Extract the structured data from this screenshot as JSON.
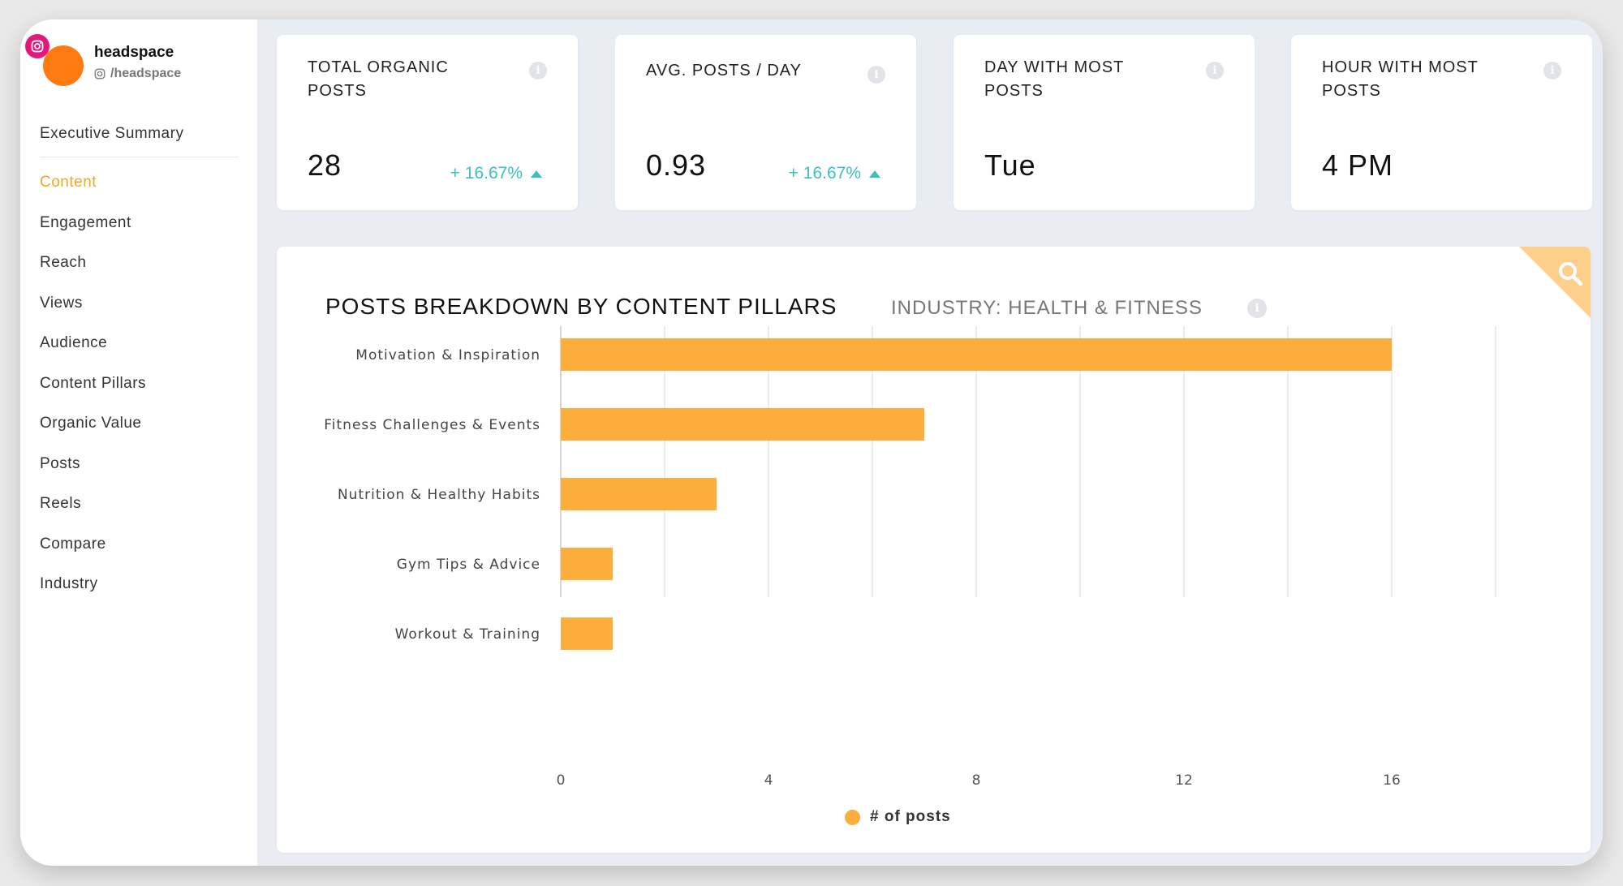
{
  "profile": {
    "name": "headspace",
    "handle": "/headspace",
    "avatar_color": "#ff7a10",
    "badge_icon": "instagram-icon"
  },
  "sidebar": {
    "summary": "Executive Summary",
    "items": [
      {
        "label": "Content",
        "active": true
      },
      {
        "label": "Engagement"
      },
      {
        "label": "Reach"
      },
      {
        "label": "Views"
      },
      {
        "label": "Audience"
      },
      {
        "label": "Content Pillars"
      },
      {
        "label": "Organic Value"
      },
      {
        "label": "Posts"
      },
      {
        "label": "Reels"
      },
      {
        "label": "Compare"
      },
      {
        "label": "Industry"
      }
    ]
  },
  "kpis": [
    {
      "title": "TOTAL ORGANIC POSTS",
      "value": "28",
      "delta": "+ 16.67%"
    },
    {
      "title": "AVG. POSTS / DAY",
      "value": "0.93",
      "delta": "+ 16.67%"
    },
    {
      "title": "DAY WITH MOST POSTS",
      "value": "Tue",
      "delta": ""
    },
    {
      "title": "HOUR WITH MOST POSTS",
      "value": "4 PM",
      "delta": ""
    }
  ],
  "colors": {
    "accent": "#f5a623",
    "bar": "#fbae3c",
    "positive": "#3bbfbf"
  },
  "chart": {
    "title": "POSTS BREAKDOWN BY CONTENT PILLARS",
    "subtitle": "INDUSTRY: HEALTH & FITNESS"
  },
  "chart_data": {
    "type": "bar",
    "orientation": "horizontal",
    "title": "POSTS BREAKDOWN BY CONTENT PILLARS",
    "subtitle": "INDUSTRY: HEALTH & FITNESS",
    "categories": [
      "Motivation & Inspiration",
      "Fitness Challenges & Events",
      "Nutrition & Healthy Habits",
      "Gym Tips & Advice",
      "Workout & Training"
    ],
    "values": [
      16,
      7,
      3,
      1,
      1
    ],
    "series_name": "# of posts",
    "xlim": [
      0,
      18
    ],
    "xticks": [
      0,
      4,
      8,
      12,
      16
    ],
    "grid_step": 2,
    "legend": "bottom-center"
  }
}
